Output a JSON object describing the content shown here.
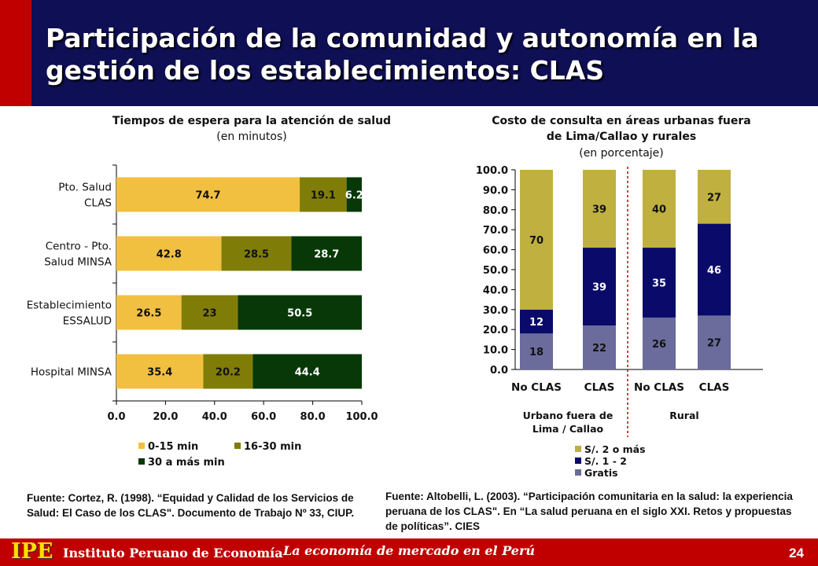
{
  "title": "Participación de la comunidad y autonomía en la gestión de los establecimientos: CLAS",
  "left_chart": {
    "title": "Tiempos de espera para la atención de salud",
    "subtitle": "(en minutos)"
  },
  "right_chart": {
    "title_line1": "Costo de consulta en áreas urbanas fuera",
    "title_line2": "de Lima/Callao y rurales",
    "subtitle": "(en porcentaje)"
  },
  "chart_data": [
    {
      "type": "bar",
      "orientation": "horizontal",
      "stacked": true,
      "categories": [
        [
          "Pto. Salud",
          "CLAS"
        ],
        [
          "Centro - Pto.",
          "Salud MINSA"
        ],
        [
          "Establecimiento",
          "ESSALUD"
        ],
        [
          "Hospital MINSA"
        ]
      ],
      "series": [
        {
          "name": "0-15 min",
          "color": "#f2c040",
          "values": [
            74.7,
            42.8,
            26.5,
            35.4
          ],
          "labels": [
            "74.7",
            "42.8",
            "26.5",
            "35.4"
          ]
        },
        {
          "name": "16-30 min",
          "color": "#7f7d07",
          "values": [
            19.1,
            28.5,
            23,
            20.2
          ],
          "labels": [
            "19.1",
            "28.5",
            "23",
            "20.2"
          ]
        },
        {
          "name": "30 a más min",
          "color": "#083808",
          "values": [
            6.2,
            28.7,
            50.5,
            44.4
          ],
          "labels": [
            "6.2",
            "28.7",
            "50.5",
            "44.4"
          ]
        }
      ],
      "xlim": [
        0,
        100
      ],
      "xticks": [
        "0.0",
        "20.0",
        "40.0",
        "60.0",
        "80.0",
        "100.0"
      ],
      "legend_position": "bottom"
    },
    {
      "type": "bar",
      "orientation": "vertical",
      "stacked": true,
      "categories": [
        "No CLAS",
        "CLAS",
        "No CLAS",
        "CLAS"
      ],
      "groups": [
        "Urbano fuera de Lima / Callao",
        "Rural"
      ],
      "series": [
        {
          "name": "Gratis",
          "color": "#6b6b9c",
          "values": [
            18,
            22,
            26,
            27
          ],
          "labels": [
            "18",
            "22",
            "26",
            "27"
          ]
        },
        {
          "name": "S/. 1 - 2",
          "color": "#0a0a6a",
          "values": [
            12,
            39,
            35,
            46
          ],
          "labels": [
            "12",
            "39",
            "35",
            "46"
          ]
        },
        {
          "name": "S/. 2 o más",
          "color": "#c0b040",
          "values": [
            70,
            39,
            40,
            27
          ],
          "labels": [
            "70",
            "39",
            "40",
            "27"
          ]
        }
      ],
      "ylim": [
        0,
        100
      ],
      "yticks": [
        "0.0",
        "10.0",
        "20.0",
        "30.0",
        "40.0",
        "50.0",
        "60.0",
        "70.0",
        "80.0",
        "90.0",
        "100.0"
      ],
      "legend_position": "bottom"
    }
  ],
  "sources": {
    "left": "Fuente: Cortez, R. (1998). “Equidad y Calidad de los Servicios de Salud: El Caso de los CLAS\". Documento de Trabajo Nº 33, CIUP.",
    "right": "Fuente: Altobelli, L. (2003). “Participación comunitaria en la salud: la experiencia peruana de los CLAS\". En “La salud peruana en el siglo XXI. Retos y propuestas de políticas”. CIES"
  },
  "footer": {
    "logo": "IPE",
    "institute": "Instituto Peruano de Economía",
    "tagline": "La economía de mercado en el Perú",
    "page_number": "24"
  }
}
